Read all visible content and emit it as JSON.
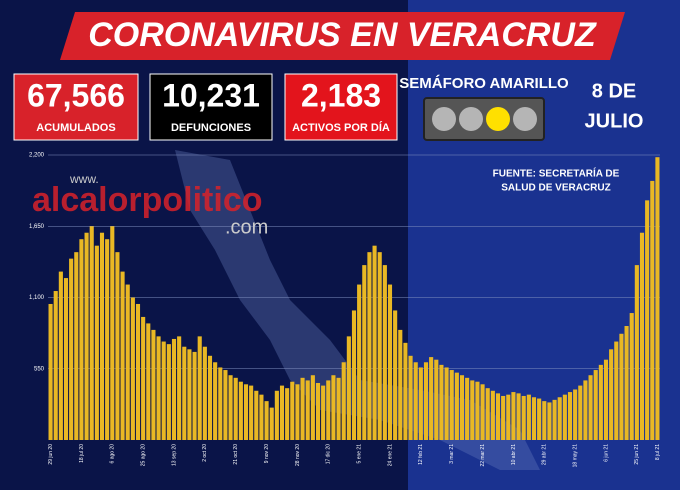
{
  "chart_data": {
    "type": "bar",
    "title": "CORONAVIRUS EN VERACRUZ",
    "source": [
      "FUENTE: SECRETARÍA DE",
      "SALUD DE VERACRUZ"
    ],
    "color": "#e9b824",
    "ylim": [
      0,
      2200
    ],
    "yticks": [
      {
        "value": 550,
        "label": "550"
      },
      {
        "value": 1100,
        "label": "1,100"
      },
      {
        "value": 1650,
        "label": "1,650"
      },
      {
        "value": 2200,
        "label": "2,200"
      }
    ],
    "grid": true,
    "categories": [
      "29 jun 20",
      null,
      null,
      null,
      null,
      null,
      "18 jul 20",
      null,
      null,
      null,
      null,
      null,
      "6 ago 20",
      null,
      null,
      null,
      null,
      null,
      "25 ago 20",
      null,
      null,
      null,
      null,
      null,
      "13 sep 20",
      null,
      null,
      null,
      null,
      null,
      "2 oct 20",
      null,
      null,
      null,
      null,
      null,
      "21 oct 20",
      null,
      null,
      null,
      null,
      null,
      "9 nov 20",
      null,
      null,
      null,
      null,
      null,
      "28 nov 20",
      null,
      null,
      null,
      null,
      null,
      "17 dic 20",
      null,
      null,
      null,
      null,
      null,
      "5 ene 21",
      null,
      null,
      null,
      null,
      null,
      "24 ene 21",
      null,
      null,
      null,
      null,
      null,
      "12 feb 21",
      null,
      null,
      null,
      null,
      null,
      "3 mar 21",
      null,
      null,
      null,
      null,
      null,
      "22 mar 21",
      null,
      null,
      null,
      null,
      null,
      "10 abr 21",
      null,
      null,
      null,
      null,
      null,
      "29 abr 21",
      null,
      null,
      null,
      null,
      null,
      "18 may 21",
      null,
      null,
      null,
      null,
      null,
      "6 jun 21",
      null,
      null,
      null,
      null,
      null,
      "25 jun 21",
      null,
      null,
      null,
      "8 jul 21"
    ],
    "values": [
      1050,
      1150,
      1300,
      1250,
      1400,
      1450,
      1550,
      1600,
      1650,
      1500,
      1600,
      1550,
      1650,
      1450,
      1300,
      1200,
      1100,
      1050,
      950,
      900,
      850,
      800,
      760,
      740,
      780,
      800,
      720,
      700,
      680,
      800,
      720,
      650,
      600,
      560,
      540,
      500,
      480,
      450,
      430,
      420,
      380,
      350,
      300,
      250,
      380,
      420,
      400,
      450,
      430,
      480,
      460,
      500,
      440,
      420,
      460,
      500,
      480,
      600,
      800,
      1000,
      1200,
      1350,
      1450,
      1500,
      1450,
      1350,
      1200,
      1000,
      850,
      750,
      650,
      600,
      560,
      600,
      640,
      620,
      580,
      560,
      540,
      520,
      500,
      480,
      460,
      450,
      430,
      400,
      380,
      360,
      340,
      350,
      370,
      360,
      340,
      350,
      330,
      320,
      300,
      290,
      310,
      330,
      350,
      370,
      390,
      420,
      460,
      500,
      540,
      580,
      620,
      700,
      760,
      820,
      880,
      980,
      1350,
      1600,
      1850,
      2000,
      2183
    ]
  },
  "stats": [
    {
      "value": "67,566",
      "label": "ACUMULADOS"
    },
    {
      "value": "10,231",
      "label": "DEFUNCIONES"
    },
    {
      "value": "2,183",
      "label": "ACTIVOS POR DÍA"
    }
  ],
  "semaforo": "SEMÁFORO AMARILLO",
  "date": [
    "8 DE",
    "JULIO"
  ],
  "watermark": [
    "www.",
    "alcalorpolitico",
    ".com"
  ]
}
